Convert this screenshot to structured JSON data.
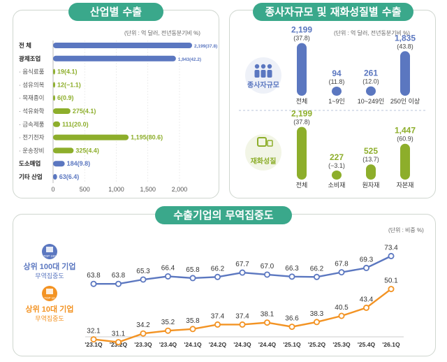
{
  "industry": {
    "title": "산업별 수출",
    "unit": "(단위 : 억 달러, 전년동분기비 %)",
    "x_ticks": [
      "0",
      "500",
      "1,000",
      "1,500",
      "2,000"
    ]
  },
  "workers": {
    "title": "종사자규모 및 재화성질별 수출",
    "unit": "(단위 : 억 달러, 전년동분기비 %)",
    "group1_label": "종사자규모",
    "group2_label": "재화성질"
  },
  "trade": {
    "title": "수출기업의 무역집중도",
    "unit": "(단위 : 비중 %)",
    "top100": {
      "badge": "TOP 100",
      "label": "상위 100대 기업",
      "sub": "무역집중도"
    },
    "top10": {
      "badge": "TOP 10",
      "label": "상위 10대 기업",
      "sub": "무역집중도"
    }
  },
  "colors": {
    "blue": "#5b77c0",
    "green": "#8dae2b",
    "orange": "#f39323",
    "teal": "#3aa88b"
  },
  "chart_data": [
    {
      "type": "bar",
      "orientation": "horizontal",
      "title": "산업별 수출",
      "categories": [
        "전 체",
        "광제조업",
        "· 음식료품",
        "· 섬유의복",
        "· 목재종이",
        "· 석유화학",
        "· 금속제품",
        "· 전기전자",
        "· 운송장비",
        "도소매업",
        "기타 산업"
      ],
      "values": [
        2199,
        1943,
        19,
        12,
        6,
        275,
        111,
        1195,
        325,
        184,
        63
      ],
      "value_labels": [
        "2,199(37.8)",
        "1,943(42.2)",
        "19(4.1)",
        "12(−1.1)",
        "6(0.9)",
        "275(4.1)",
        "111(20.0)",
        "1,195(80.6)",
        "325(4.4)",
        "184(9.8)",
        "63(6.4)"
      ],
      "bar_colors": [
        "blue",
        "blue",
        "green",
        "green",
        "green",
        "green",
        "green",
        "green",
        "green",
        "blue",
        "blue"
      ],
      "xlim": [
        0,
        2200
      ]
    },
    {
      "type": "bar",
      "title": "종사자규모",
      "categories": [
        "전체",
        "1~9인",
        "10~249인",
        "250인 이상"
      ],
      "values": [
        2199,
        94,
        261,
        1835
      ],
      "value_labels": [
        "2,199",
        "94",
        "261",
        "1,835"
      ],
      "change_labels": [
        "(37.8)",
        "(11.8)",
        "(12.0)",
        "(43.8)"
      ]
    },
    {
      "type": "bar",
      "title": "재화성질",
      "categories": [
        "전체",
        "소비재",
        "원자재",
        "자본재"
      ],
      "values": [
        2199,
        227,
        525,
        1447
      ],
      "value_labels": [
        "2,199",
        "227",
        "525",
        "1,447"
      ],
      "change_labels": [
        "(37.8)",
        "(−3.1)",
        "(13.7)",
        "(60.9)"
      ]
    },
    {
      "type": "line",
      "title": "수출기업의 무역집중도",
      "x": [
        "'23.1Q",
        "'23.2Q",
        "'23.3Q",
        "'23.4Q",
        "'24.1Q",
        "'24.2Q",
        "'24.3Q",
        "'24.4Q",
        "'25.1Q",
        "'25.2Q",
        "'25.3Q",
        "'25.4Q",
        "'26.1Q"
      ],
      "series": [
        {
          "name": "상위 100대 기업",
          "values": [
            63.8,
            63.8,
            65.3,
            66.4,
            65.8,
            66.2,
            67.7,
            67.0,
            66.3,
            66.2,
            67.8,
            69.3,
            73.4
          ]
        },
        {
          "name": "상위 10대 기업",
          "values": [
            32.1,
            31.1,
            34.2,
            35.2,
            35.8,
            37.4,
            37.4,
            38.1,
            36.6,
            38.3,
            40.5,
            43.4,
            50.1
          ]
        }
      ]
    }
  ]
}
